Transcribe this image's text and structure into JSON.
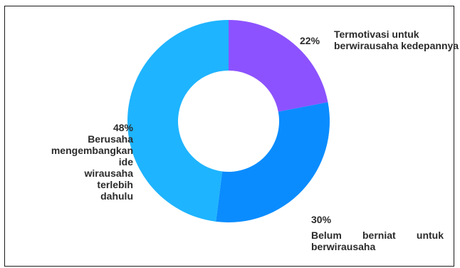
{
  "chart_data": {
    "type": "pie",
    "donut": true,
    "slices": [
      {
        "label_lines": [
          "Termotivasi untuk",
          "berwirausaha kedepannya"
        ],
        "value": 22,
        "value_label": "22%",
        "color": "#8C52FF"
      },
      {
        "label_lines": [
          "Belum berniat untuk",
          "berwirausaha"
        ],
        "value": 30,
        "value_label": "30%",
        "color": "#0A8CFF"
      },
      {
        "label_lines": [
          "Berusaha",
          "mengembangkan ide",
          "wirausaha terlebih",
          "dahulu"
        ],
        "value": 48,
        "value_label": "48%",
        "color": "#1EB4FF"
      }
    ],
    "start_angle_deg": 0,
    "direction": "clockwise"
  }
}
